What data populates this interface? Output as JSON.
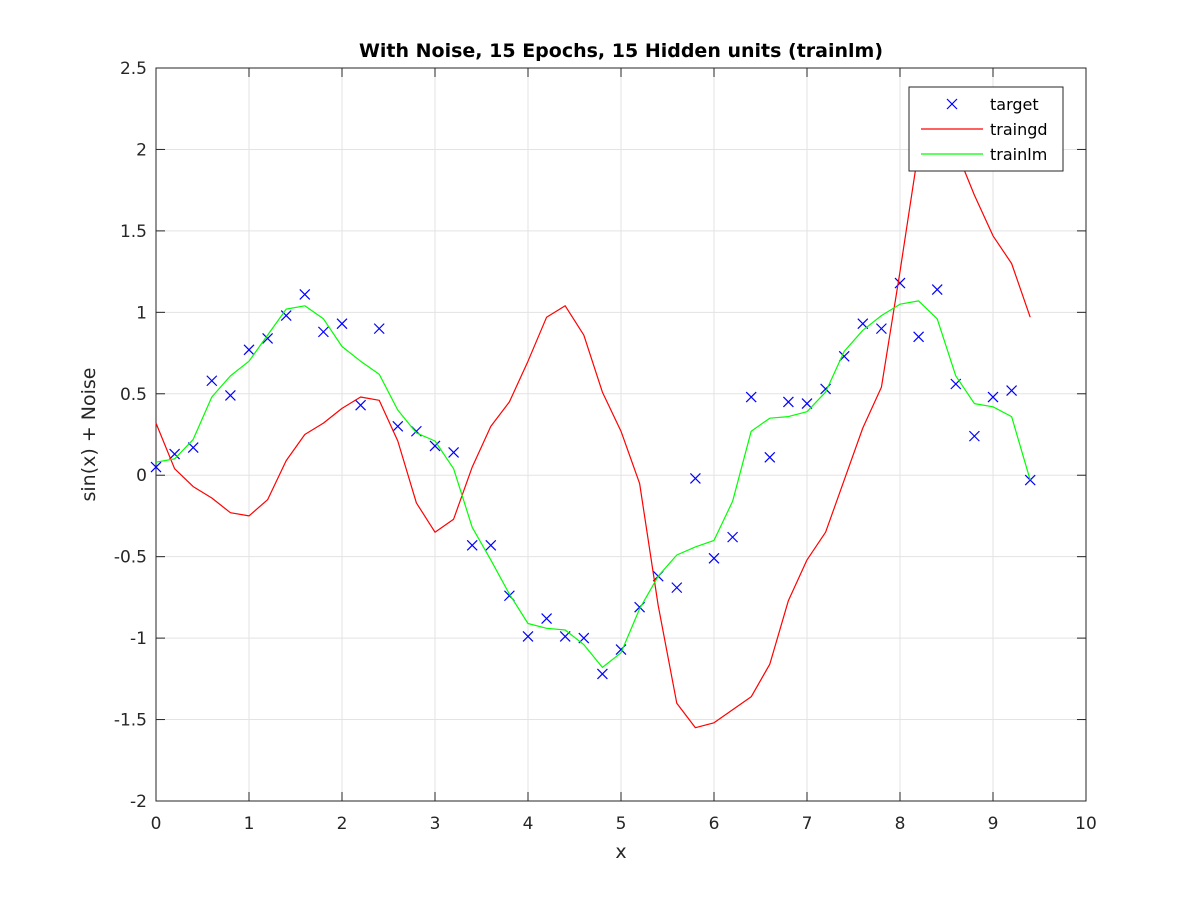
{
  "chart_data": {
    "type": "line",
    "title": "With Noise, 15 Epochs, 15 Hidden units (trainlm)",
    "xlabel": "x",
    "ylabel": "sin(x) + Noise",
    "xlim": [
      0,
      10
    ],
    "ylim": [
      -2,
      2.5
    ],
    "xticks": [
      0,
      1,
      2,
      3,
      4,
      5,
      6,
      7,
      8,
      9,
      10
    ],
    "yticks": [
      -2,
      -1.5,
      -1,
      -0.5,
      0,
      0.5,
      1,
      1.5,
      2,
      2.5
    ],
    "xtick_labels": [
      "0",
      "1",
      "2",
      "3",
      "4",
      "5",
      "6",
      "7",
      "8",
      "9",
      "10"
    ],
    "ytick_labels": [
      "-2",
      "-1.5",
      "-1",
      "-0.5",
      "0",
      "0.5",
      "1",
      "1.5",
      "2",
      "2.5"
    ],
    "grid": true,
    "legend_position": "top-right",
    "series": [
      {
        "name": "target",
        "style": "markers",
        "marker": "x",
        "color": "#0000ff",
        "x": [
          0,
          0.2,
          0.4,
          0.6,
          0.8,
          1.0,
          1.2,
          1.4,
          1.6,
          1.8,
          2.0,
          2.2,
          2.4,
          2.6,
          2.8,
          3.0,
          3.2,
          3.4,
          3.6,
          3.8,
          4.0,
          4.2,
          4.4,
          4.6,
          4.8,
          5.0,
          5.2,
          5.4,
          5.6,
          5.8,
          6.0,
          6.2,
          6.4,
          6.6,
          6.8,
          7.0,
          7.2,
          7.4,
          7.6,
          7.8,
          8.0,
          8.2,
          8.4,
          8.6,
          8.8,
          9.0,
          9.2,
          9.4
        ],
        "y": [
          0.05,
          0.13,
          0.17,
          0.58,
          0.49,
          0.77,
          0.84,
          0.98,
          1.11,
          0.88,
          0.93,
          0.43,
          0.9,
          0.3,
          0.27,
          0.18,
          0.14,
          -0.43,
          -0.43,
          -0.74,
          -0.99,
          -0.88,
          -0.99,
          -1.0,
          -1.22,
          -1.07,
          -0.81,
          -0.62,
          -0.69,
          -0.02,
          -0.51,
          -0.38,
          0.48,
          0.11,
          0.45,
          0.44,
          0.53,
          0.73,
          0.93,
          0.9,
          1.18,
          0.85,
          1.14,
          0.56,
          0.24,
          0.48,
          0.52,
          -0.03
        ]
      },
      {
        "name": "traingd",
        "style": "line",
        "color": "#ff0000",
        "x": [
          0,
          0.2,
          0.4,
          0.6,
          0.8,
          1.0,
          1.2,
          1.4,
          1.6,
          1.8,
          2.0,
          2.2,
          2.4,
          2.6,
          2.8,
          3.0,
          3.2,
          3.4,
          3.6,
          3.8,
          4.0,
          4.2,
          4.4,
          4.6,
          4.8,
          5.0,
          5.2,
          5.4,
          5.6,
          5.8,
          6.0,
          6.2,
          6.4,
          6.6,
          6.8,
          7.0,
          7.2,
          7.4,
          7.6,
          7.8,
          8.0,
          8.2,
          8.4,
          8.6,
          8.8,
          9.0,
          9.2,
          9.4
        ],
        "y": [
          0.32,
          0.04,
          -0.07,
          -0.14,
          -0.23,
          -0.25,
          -0.15,
          0.09,
          0.25,
          0.32,
          0.41,
          0.48,
          0.46,
          0.21,
          -0.17,
          -0.35,
          -0.27,
          0.05,
          0.3,
          0.45,
          0.7,
          0.97,
          1.04,
          0.86,
          0.51,
          0.27,
          -0.05,
          -0.8,
          -1.4,
          -1.55,
          -1.52,
          -1.44,
          -1.36,
          -1.16,
          -0.77,
          -0.52,
          -0.35,
          -0.03,
          0.29,
          0.54,
          1.25,
          2.0,
          2.25,
          2.0,
          1.72,
          1.47,
          1.3,
          0.97
        ]
      },
      {
        "name": "trainlm",
        "style": "line",
        "color": "#00ff00",
        "x": [
          0,
          0.2,
          0.4,
          0.6,
          0.8,
          1.0,
          1.2,
          1.4,
          1.6,
          1.8,
          2.0,
          2.2,
          2.4,
          2.6,
          2.8,
          3.0,
          3.2,
          3.4,
          3.6,
          3.8,
          4.0,
          4.2,
          4.4,
          4.6,
          4.8,
          5.0,
          5.2,
          5.4,
          5.6,
          5.8,
          6.0,
          6.2,
          6.4,
          6.6,
          6.8,
          7.0,
          7.2,
          7.4,
          7.6,
          7.8,
          8.0,
          8.2,
          8.4,
          8.6,
          8.8,
          9.0,
          9.2,
          9.4
        ],
        "y": [
          0.08,
          0.1,
          0.22,
          0.48,
          0.61,
          0.7,
          0.86,
          1.02,
          1.04,
          0.96,
          0.79,
          0.7,
          0.62,
          0.4,
          0.26,
          0.21,
          0.04,
          -0.32,
          -0.52,
          -0.73,
          -0.91,
          -0.94,
          -0.95,
          -1.04,
          -1.18,
          -1.09,
          -0.82,
          -0.62,
          -0.49,
          -0.44,
          -0.4,
          -0.16,
          0.27,
          0.35,
          0.36,
          0.39,
          0.51,
          0.76,
          0.89,
          0.98,
          1.05,
          1.07,
          0.96,
          0.61,
          0.44,
          0.42,
          0.36,
          -0.03
        ]
      }
    ]
  }
}
